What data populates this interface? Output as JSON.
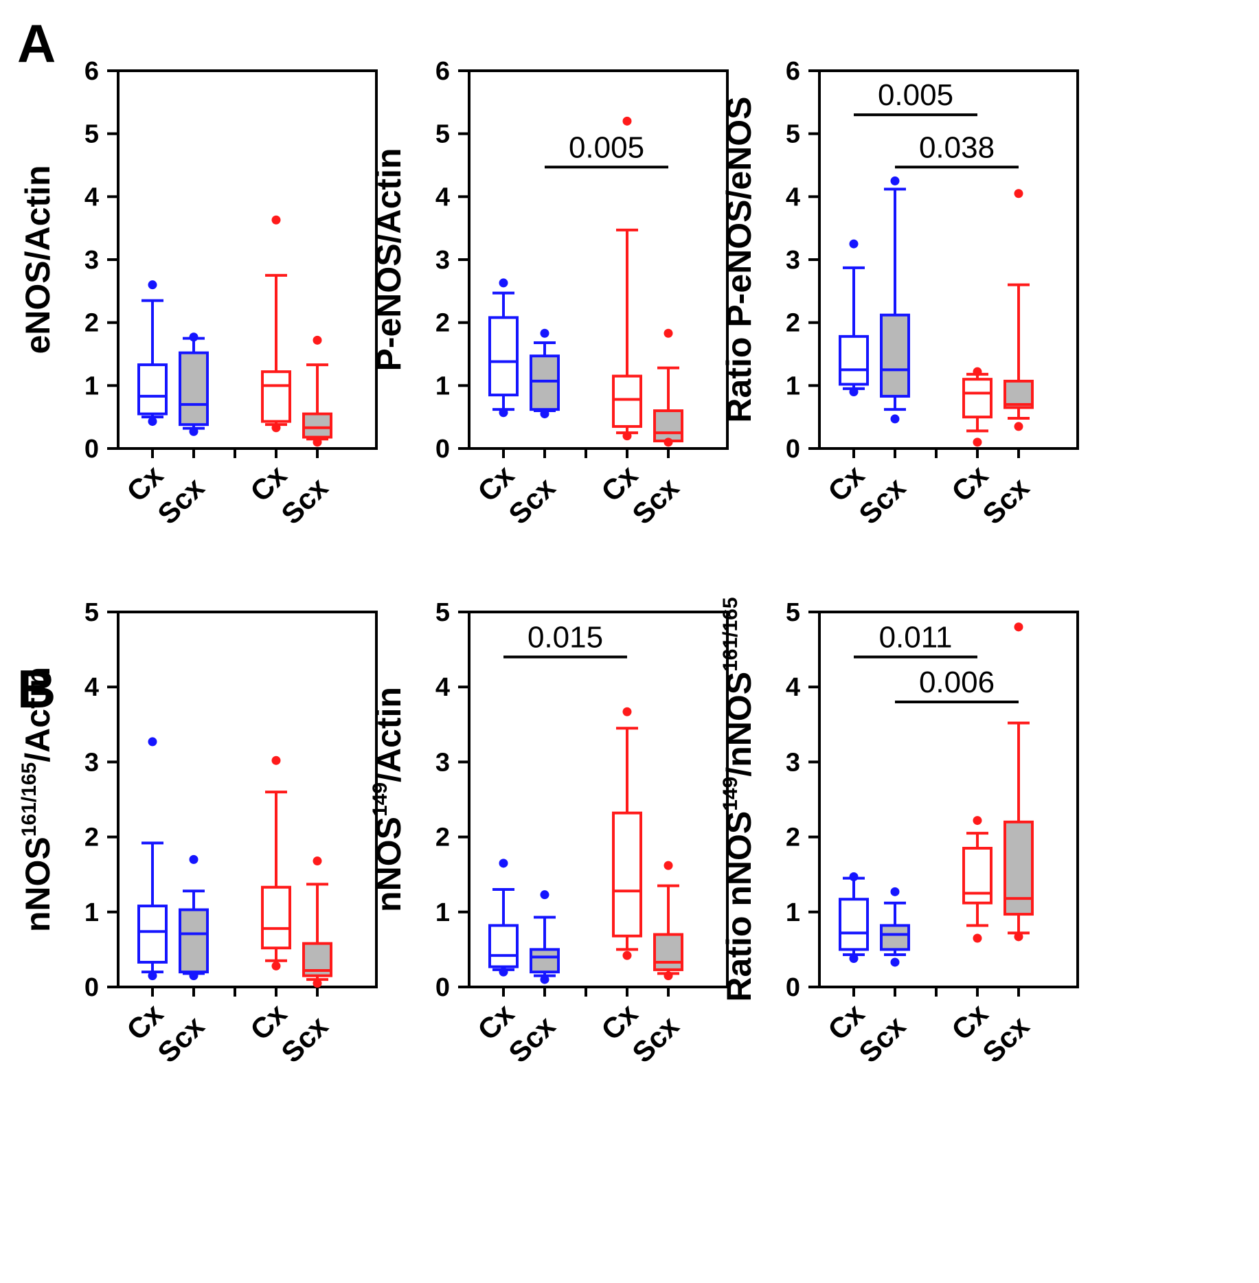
{
  "panel_labels": [
    "A",
    "B"
  ],
  "colors": {
    "group1": "#1515ff",
    "group2": "#ff1a1a",
    "fill": "#b8b8b8",
    "axis": "#000000"
  },
  "chart_data": [
    {
      "id": "a1",
      "type": "box",
      "panel": "A",
      "ylabel": {
        "main": "eNOS/Actin"
      },
      "ylim": [
        0,
        6
      ],
      "yticks": [
        "0",
        "1",
        "2",
        "3",
        "4",
        "5",
        "6"
      ],
      "categories": [
        "Cx",
        "Scx",
        "Cx",
        "Scx"
      ],
      "boxes": [
        {
          "group": 1,
          "filled": false,
          "whisker_low": 0.5,
          "q1": 0.55,
          "median": 0.83,
          "q3": 1.33,
          "whisker_high": 2.35,
          "outliers": [
            2.6,
            0.43
          ]
        },
        {
          "group": 1,
          "filled": true,
          "whisker_low": 0.32,
          "q1": 0.38,
          "median": 0.7,
          "q3": 1.52,
          "whisker_high": 1.75,
          "outliers": [
            1.77,
            0.27
          ]
        },
        {
          "group": 2,
          "filled": false,
          "whisker_low": 0.38,
          "q1": 0.43,
          "median": 1.0,
          "q3": 1.22,
          "whisker_high": 2.75,
          "outliers": [
            3.63,
            0.33
          ]
        },
        {
          "group": 2,
          "filled": true,
          "whisker_low": 0.15,
          "q1": 0.18,
          "median": 0.33,
          "q3": 0.55,
          "whisker_high": 1.33,
          "outliers": [
            1.72,
            0.1
          ]
        }
      ],
      "brackets": []
    },
    {
      "id": "a2",
      "type": "box",
      "panel": "A",
      "ylabel": {
        "main": "P-eNOS/Actin"
      },
      "ylim": [
        0,
        6
      ],
      "yticks": [
        "0",
        "1",
        "2",
        "3",
        "4",
        "5",
        "6"
      ],
      "categories": [
        "Cx",
        "Scx",
        "Cx",
        "Scx"
      ],
      "boxes": [
        {
          "group": 1,
          "filled": false,
          "whisker_low": 0.62,
          "q1": 0.85,
          "median": 1.38,
          "q3": 2.08,
          "whisker_high": 2.47,
          "outliers": [
            2.63,
            0.57
          ]
        },
        {
          "group": 1,
          "filled": true,
          "whisker_low": 0.6,
          "q1": 0.62,
          "median": 1.07,
          "q3": 1.47,
          "whisker_high": 1.68,
          "outliers": [
            1.83,
            0.55
          ]
        },
        {
          "group": 2,
          "filled": false,
          "whisker_low": 0.25,
          "q1": 0.35,
          "median": 0.78,
          "q3": 1.15,
          "whisker_high": 3.47,
          "outliers": [
            5.2,
            0.2
          ]
        },
        {
          "group": 2,
          "filled": true,
          "whisker_low": 0.12,
          "q1": 0.12,
          "median": 0.25,
          "q3": 0.6,
          "whisker_high": 1.28,
          "outliers": [
            1.83,
            0.1
          ]
        }
      ],
      "brackets": [
        {
          "from": 1,
          "to": 3,
          "y": 4.47,
          "label": "0.005"
        }
      ]
    },
    {
      "id": "a3",
      "type": "box",
      "panel": "A",
      "ylabel": {
        "main": "Ratio P-eNOS/eNOS"
      },
      "ylim": [
        0,
        6
      ],
      "yticks": [
        "0",
        "1",
        "2",
        "3",
        "4",
        "5",
        "6"
      ],
      "categories": [
        "Cx",
        "Scx",
        "Cx",
        "Scx"
      ],
      "boxes": [
        {
          "group": 1,
          "filled": false,
          "whisker_low": 0.95,
          "q1": 1.02,
          "median": 1.25,
          "q3": 1.78,
          "whisker_high": 2.87,
          "outliers": [
            3.25,
            0.9
          ]
        },
        {
          "group": 1,
          "filled": true,
          "whisker_low": 0.62,
          "q1": 0.83,
          "median": 1.25,
          "q3": 2.12,
          "whisker_high": 4.12,
          "outliers": [
            4.25,
            0.47
          ]
        },
        {
          "group": 2,
          "filled": false,
          "whisker_low": 0.28,
          "q1": 0.5,
          "median": 0.88,
          "q3": 1.1,
          "whisker_high": 1.18,
          "outliers": [
            1.22,
            0.1
          ]
        },
        {
          "group": 2,
          "filled": true,
          "whisker_low": 0.48,
          "q1": 0.65,
          "median": 0.7,
          "q3": 1.07,
          "whisker_high": 2.6,
          "outliers": [
            4.05,
            0.35
          ]
        }
      ],
      "brackets": [
        {
          "from": 0,
          "to": 2,
          "y": 5.3,
          "label": "0.005"
        },
        {
          "from": 1,
          "to": 3,
          "y": 4.47,
          "label": "0.038"
        }
      ]
    },
    {
      "id": "b1",
      "type": "box",
      "panel": "B",
      "ylabel": {
        "main": "nNOS",
        "sup": "161/165",
        "tail": "/Actin"
      },
      "ylim": [
        0,
        5
      ],
      "yticks": [
        "0",
        "1",
        "2",
        "3",
        "4",
        "5"
      ],
      "categories": [
        "Cx",
        "Scx",
        "Cx",
        "Scx"
      ],
      "boxes": [
        {
          "group": 1,
          "filled": false,
          "whisker_low": 0.2,
          "q1": 0.33,
          "median": 0.74,
          "q3": 1.08,
          "whisker_high": 1.92,
          "outliers": [
            3.27,
            0.15
          ]
        },
        {
          "group": 1,
          "filled": true,
          "whisker_low": 0.18,
          "q1": 0.2,
          "median": 0.71,
          "q3": 1.03,
          "whisker_high": 1.28,
          "outliers": [
            1.7,
            0.15
          ]
        },
        {
          "group": 2,
          "filled": false,
          "whisker_low": 0.35,
          "q1": 0.52,
          "median": 0.78,
          "q3": 1.33,
          "whisker_high": 2.6,
          "outliers": [
            3.02,
            0.28
          ]
        },
        {
          "group": 2,
          "filled": true,
          "whisker_low": 0.1,
          "q1": 0.15,
          "median": 0.22,
          "q3": 0.58,
          "whisker_high": 1.37,
          "outliers": [
            1.68,
            0.05
          ]
        }
      ],
      "brackets": []
    },
    {
      "id": "b2",
      "type": "box",
      "panel": "B",
      "ylabel": {
        "main": "nNOS",
        "sup": "149",
        "tail": "/Actin"
      },
      "ylim": [
        0,
        5
      ],
      "yticks": [
        "0",
        "1",
        "2",
        "3",
        "4",
        "5"
      ],
      "categories": [
        "Cx",
        "Scx",
        "Cx",
        "Scx"
      ],
      "boxes": [
        {
          "group": 1,
          "filled": false,
          "whisker_low": 0.23,
          "q1": 0.27,
          "median": 0.42,
          "q3": 0.82,
          "whisker_high": 1.3,
          "outliers": [
            1.65,
            0.2
          ]
        },
        {
          "group": 1,
          "filled": true,
          "whisker_low": 0.15,
          "q1": 0.2,
          "median": 0.4,
          "q3": 0.5,
          "whisker_high": 0.93,
          "outliers": [
            1.23,
            0.1
          ]
        },
        {
          "group": 2,
          "filled": false,
          "whisker_low": 0.5,
          "q1": 0.68,
          "median": 1.28,
          "q3": 2.32,
          "whisker_high": 3.45,
          "outliers": [
            3.67,
            0.42
          ]
        },
        {
          "group": 2,
          "filled": true,
          "whisker_low": 0.18,
          "q1": 0.23,
          "median": 0.33,
          "q3": 0.7,
          "whisker_high": 1.35,
          "outliers": [
            1.62,
            0.15
          ]
        }
      ],
      "brackets": [
        {
          "from": 0,
          "to": 2,
          "y": 4.4,
          "label": "0.015"
        }
      ]
    },
    {
      "id": "b3",
      "type": "box",
      "panel": "B",
      "ylabel": {
        "main": "Ratio nNOS",
        "sup": "149",
        "mid": "/nNOS",
        "sup2": "161/165"
      },
      "ylim": [
        0,
        5
      ],
      "yticks": [
        "0",
        "1",
        "2",
        "3",
        "4",
        "5"
      ],
      "categories": [
        "Cx",
        "Scx",
        "Cx",
        "Scx"
      ],
      "boxes": [
        {
          "group": 1,
          "filled": false,
          "whisker_low": 0.43,
          "q1": 0.5,
          "median": 0.72,
          "q3": 1.17,
          "whisker_high": 1.45,
          "outliers": [
            1.47,
            0.38
          ]
        },
        {
          "group": 1,
          "filled": true,
          "whisker_low": 0.43,
          "q1": 0.5,
          "median": 0.7,
          "q3": 0.82,
          "whisker_high": 1.12,
          "outliers": [
            1.27,
            0.33
          ]
        },
        {
          "group": 2,
          "filled": false,
          "whisker_low": 0.82,
          "q1": 1.12,
          "median": 1.25,
          "q3": 1.85,
          "whisker_high": 2.05,
          "outliers": [
            2.22,
            0.65
          ]
        },
        {
          "group": 2,
          "filled": true,
          "whisker_low": 0.72,
          "q1": 0.97,
          "median": 1.18,
          "q3": 2.2,
          "whisker_high": 3.52,
          "outliers": [
            4.8,
            0.67
          ]
        }
      ],
      "brackets": [
        {
          "from": 0,
          "to": 2,
          "y": 4.4,
          "label": "0.011"
        },
        {
          "from": 1,
          "to": 3,
          "y": 3.8,
          "label": "0.006"
        }
      ]
    }
  ]
}
